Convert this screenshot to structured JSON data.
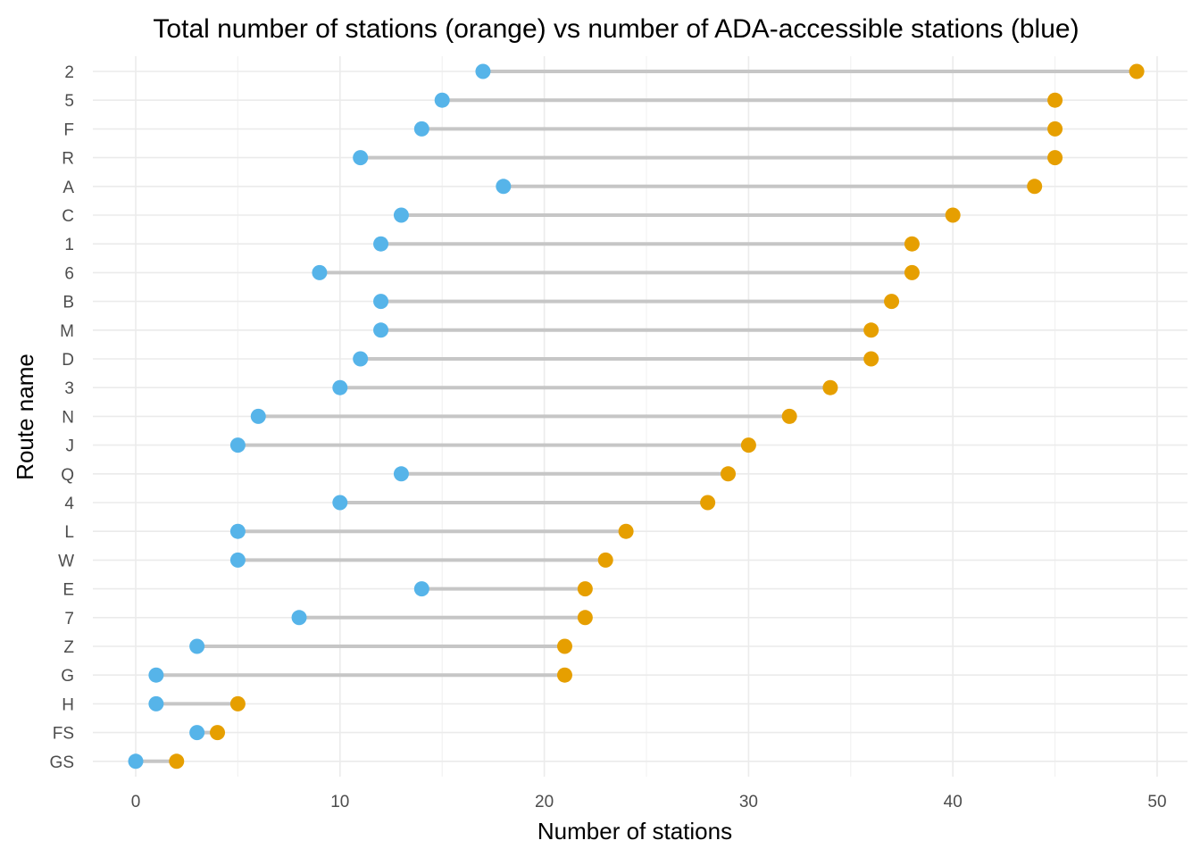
{
  "chart_data": {
    "type": "dumbbell",
    "title": "Total number of stations (orange) vs number of ADA-accessible stations (blue)",
    "xlabel": "Number of stations",
    "ylabel": "Route name",
    "xlim": [
      -2.2,
      51.2
    ],
    "x_ticks": [
      0,
      10,
      20,
      30,
      40,
      50
    ],
    "x_minor_ticks": [
      5,
      15,
      25,
      35,
      45
    ],
    "grid": true,
    "legend": "none",
    "colors": {
      "ada_accessible": "#56B4E9",
      "total": "#E69F00",
      "segment": "#c6c6c6"
    },
    "categories": [
      "2",
      "5",
      "F",
      "R",
      "A",
      "C",
      "1",
      "6",
      "B",
      "M",
      "D",
      "3",
      "N",
      "J",
      "Q",
      "4",
      "L",
      "W",
      "E",
      "7",
      "Z",
      "G",
      "H",
      "FS",
      "GS"
    ],
    "series": [
      {
        "key": "ada_accessible",
        "values": [
          17,
          15,
          14,
          11,
          18,
          13,
          12,
          9,
          12,
          12,
          11,
          10,
          6,
          5,
          13,
          10,
          5,
          5,
          14,
          8,
          3,
          1,
          1,
          3,
          0
        ]
      },
      {
        "key": "total",
        "values": [
          49,
          45,
          45,
          45,
          44,
          40,
          38,
          38,
          37,
          36,
          36,
          34,
          32,
          30,
          29,
          28,
          24,
          23,
          22,
          22,
          21,
          21,
          5,
          4,
          2
        ]
      }
    ]
  }
}
